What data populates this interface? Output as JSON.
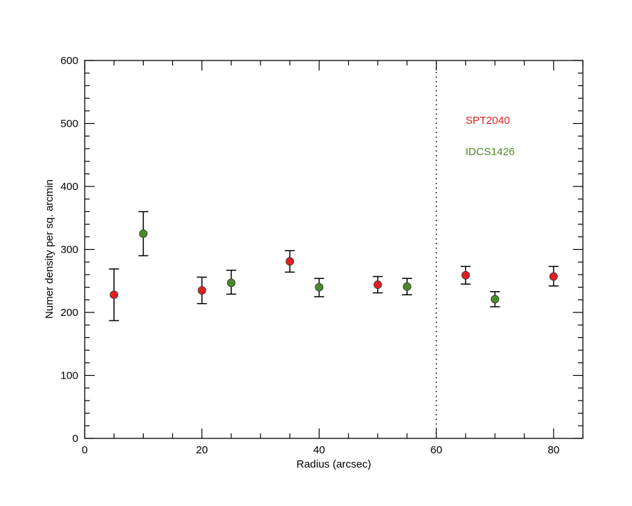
{
  "chart_data": {
    "type": "scatter",
    "title": "",
    "xlabel": "Radius (arcsec)",
    "ylabel": "Numer density per sq. arcmin",
    "xlim": [
      0,
      85
    ],
    "ylim": [
      0,
      600
    ],
    "x_ticks": [
      "0",
      "20",
      "40",
      "60",
      "80"
    ],
    "y_ticks": [
      "0",
      "100",
      "200",
      "300",
      "400",
      "500",
      "600"
    ],
    "grid": false,
    "vertical_line": {
      "x": 60,
      "style": "dotted"
    },
    "legend_position": "top-right",
    "series": [
      {
        "name": "SPT2040",
        "color": "#e02020",
        "points": [
          {
            "x": 5,
            "y": 228,
            "err_low": 187,
            "err_high": 269
          },
          {
            "x": 20,
            "y": 235,
            "err_low": 214,
            "err_high": 256
          },
          {
            "x": 35,
            "y": 281,
            "err_low": 264,
            "err_high": 298
          },
          {
            "x": 50,
            "y": 244,
            "err_low": 231,
            "err_high": 257
          },
          {
            "x": 65,
            "y": 259,
            "err_low": 245,
            "err_high": 273
          },
          {
            "x": 80,
            "y": 257,
            "err_low": 242,
            "err_high": 273
          }
        ]
      },
      {
        "name": "IDCS1426",
        "color": "#4a8a2a",
        "points": [
          {
            "x": 10,
            "y": 325,
            "err_low": 290,
            "err_high": 360
          },
          {
            "x": 25,
            "y": 247,
            "err_low": 229,
            "err_high": 267
          },
          {
            "x": 40,
            "y": 240,
            "err_low": 225,
            "err_high": 254
          },
          {
            "x": 55,
            "y": 241,
            "err_low": 228,
            "err_high": 254
          },
          {
            "x": 70,
            "y": 221,
            "err_low": 209,
            "err_high": 233
          }
        ]
      }
    ]
  }
}
